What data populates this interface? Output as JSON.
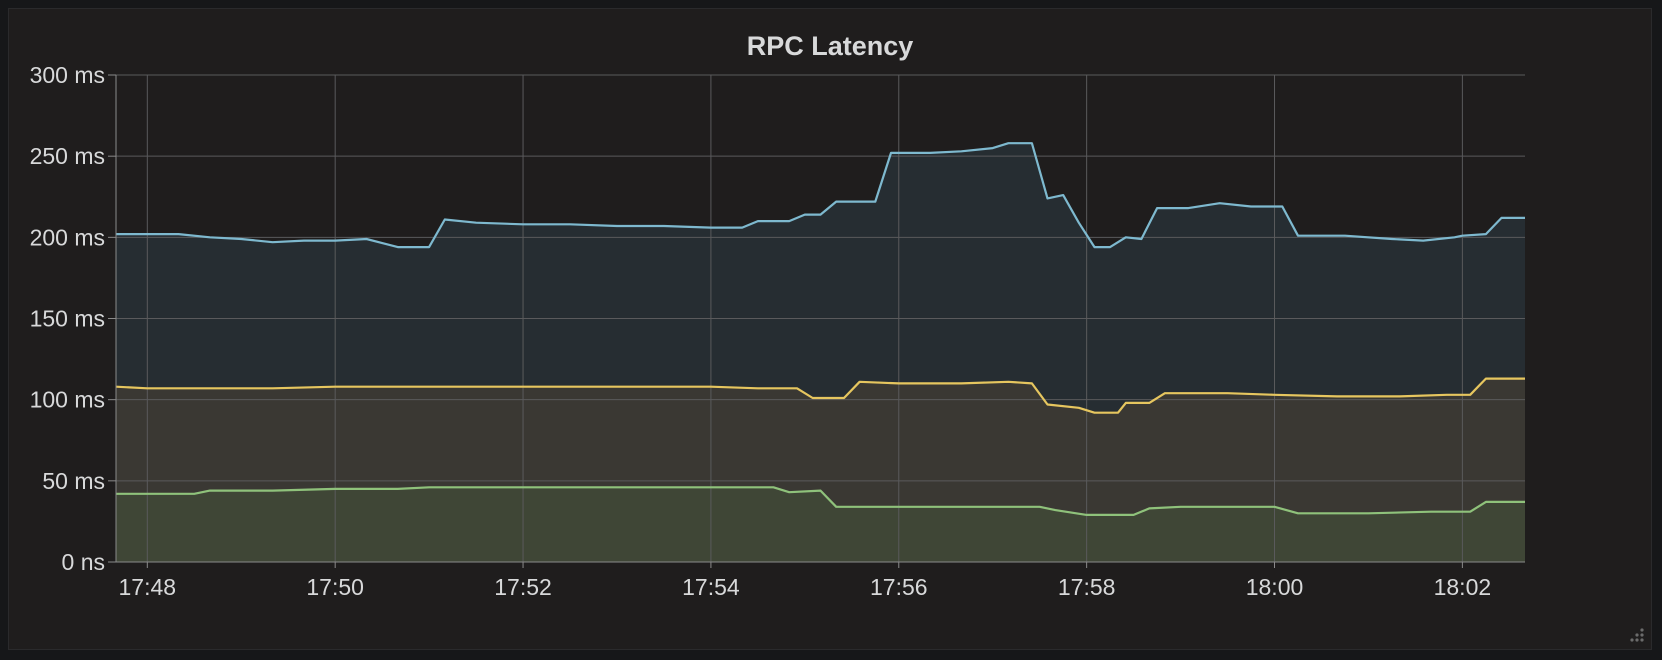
{
  "panel": {
    "title": "RPC Latency"
  },
  "chart_data": {
    "type": "area",
    "title": "RPC Latency",
    "xlabel": "",
    "ylabel": "",
    "x_ticks": [
      "17:48",
      "17:50",
      "17:52",
      "17:54",
      "17:56",
      "17:58",
      "18:00",
      "18:02"
    ],
    "y_ticks": [
      {
        "value": 0,
        "label": "0 ns"
      },
      {
        "value": 50,
        "label": "50 ms"
      },
      {
        "value": 100,
        "label": "100 ms"
      },
      {
        "value": 150,
        "label": "150 ms"
      },
      {
        "value": 200,
        "label": "200 ms"
      },
      {
        "value": 250,
        "label": "250 ms"
      },
      {
        "value": 300,
        "label": "300 ms"
      }
    ],
    "xlim": [
      "17:47:40",
      "18:02:40"
    ],
    "ylim": [
      0,
      300
    ],
    "grid": true,
    "legend": "none",
    "series": [
      {
        "color": "#7eb9cf",
        "fill": "#262d32",
        "points": [
          [
            "17:47:40",
            202
          ],
          [
            "17:48:00",
            202
          ],
          [
            "17:48:20",
            202
          ],
          [
            "17:48:40",
            200
          ],
          [
            "17:49:00",
            199
          ],
          [
            "17:49:20",
            197
          ],
          [
            "17:49:40",
            198
          ],
          [
            "17:50:00",
            198
          ],
          [
            "17:50:20",
            199
          ],
          [
            "17:50:40",
            194
          ],
          [
            "17:51:00",
            194
          ],
          [
            "17:51:10",
            211
          ],
          [
            "17:51:30",
            209
          ],
          [
            "17:52:00",
            208
          ],
          [
            "17:52:30",
            208
          ],
          [
            "17:53:00",
            207
          ],
          [
            "17:53:30",
            207
          ],
          [
            "17:54:00",
            206
          ],
          [
            "17:54:20",
            206
          ],
          [
            "17:54:30",
            210
          ],
          [
            "17:54:50",
            210
          ],
          [
            "17:55:00",
            214
          ],
          [
            "17:55:10",
            214
          ],
          [
            "17:55:20",
            222
          ],
          [
            "17:55:45",
            222
          ],
          [
            "17:55:55",
            252
          ],
          [
            "17:56:20",
            252
          ],
          [
            "17:56:40",
            253
          ],
          [
            "17:57:00",
            255
          ],
          [
            "17:57:10",
            258
          ],
          [
            "17:57:25",
            258
          ],
          [
            "17:57:35",
            224
          ],
          [
            "17:57:45",
            226
          ],
          [
            "17:57:55",
            209
          ],
          [
            "17:58:05",
            194
          ],
          [
            "17:58:15",
            194
          ],
          [
            "17:58:25",
            200
          ],
          [
            "17:58:35",
            199
          ],
          [
            "17:58:45",
            218
          ],
          [
            "17:59:05",
            218
          ],
          [
            "17:59:25",
            221
          ],
          [
            "17:59:45",
            219
          ],
          [
            "18:00:05",
            219
          ],
          [
            "18:00:15",
            201
          ],
          [
            "18:00:45",
            201
          ],
          [
            "18:01:15",
            199
          ],
          [
            "18:01:35",
            198
          ],
          [
            "18:01:55",
            200
          ],
          [
            "18:02:00",
            201
          ],
          [
            "18:02:15",
            202
          ],
          [
            "18:02:25",
            212
          ],
          [
            "18:02:40",
            212
          ]
        ]
      },
      {
        "color": "#e6c65f",
        "fill": "#3a3833",
        "points": [
          [
            "17:47:40",
            108
          ],
          [
            "17:48:00",
            107
          ],
          [
            "17:48:40",
            107
          ],
          [
            "17:49:20",
            107
          ],
          [
            "17:50:00",
            108
          ],
          [
            "17:50:40",
            108
          ],
          [
            "17:51:20",
            108
          ],
          [
            "17:52:00",
            108
          ],
          [
            "17:52:40",
            108
          ],
          [
            "17:53:20",
            108
          ],
          [
            "17:54:00",
            108
          ],
          [
            "17:54:30",
            107
          ],
          [
            "17:54:55",
            107
          ],
          [
            "17:55:05",
            101
          ],
          [
            "17:55:25",
            101
          ],
          [
            "17:55:35",
            111
          ],
          [
            "17:56:00",
            110
          ],
          [
            "17:56:40",
            110
          ],
          [
            "17:57:10",
            111
          ],
          [
            "17:57:25",
            110
          ],
          [
            "17:57:35",
            97
          ],
          [
            "17:57:55",
            95
          ],
          [
            "17:58:05",
            92
          ],
          [
            "17:58:20",
            92
          ],
          [
            "17:58:25",
            98
          ],
          [
            "17:58:40",
            98
          ],
          [
            "17:58:50",
            104
          ],
          [
            "17:59:30",
            104
          ],
          [
            "18:00:00",
            103
          ],
          [
            "18:00:40",
            102
          ],
          [
            "18:01:20",
            102
          ],
          [
            "18:01:50",
            103
          ],
          [
            "18:02:05",
            103
          ],
          [
            "18:02:15",
            113
          ],
          [
            "18:02:40",
            113
          ]
        ]
      },
      {
        "color": "#8fc27b",
        "fill": "#3f4636",
        "points": [
          [
            "17:47:40",
            42
          ],
          [
            "17:48:00",
            42
          ],
          [
            "17:48:30",
            42
          ],
          [
            "17:48:40",
            44
          ],
          [
            "17:49:20",
            44
          ],
          [
            "17:50:00",
            45
          ],
          [
            "17:50:40",
            45
          ],
          [
            "17:51:00",
            46
          ],
          [
            "17:51:40",
            46
          ],
          [
            "17:52:20",
            46
          ],
          [
            "17:53:00",
            46
          ],
          [
            "17:53:40",
            46
          ],
          [
            "17:54:20",
            46
          ],
          [
            "17:54:40",
            46
          ],
          [
            "17:54:50",
            43
          ],
          [
            "17:55:10",
            44
          ],
          [
            "17:55:20",
            34
          ],
          [
            "17:55:45",
            34
          ],
          [
            "17:56:20",
            34
          ],
          [
            "17:57:00",
            34
          ],
          [
            "17:57:30",
            34
          ],
          [
            "17:57:40",
            32
          ],
          [
            "17:58:00",
            29
          ],
          [
            "17:58:30",
            29
          ],
          [
            "17:58:40",
            33
          ],
          [
            "17:59:00",
            34
          ],
          [
            "17:59:40",
            34
          ],
          [
            "18:00:00",
            34
          ],
          [
            "18:00:15",
            30
          ],
          [
            "18:01:00",
            30
          ],
          [
            "18:01:40",
            31
          ],
          [
            "18:02:05",
            31
          ],
          [
            "18:02:15",
            37
          ],
          [
            "18:02:40",
            37
          ]
        ]
      }
    ]
  }
}
